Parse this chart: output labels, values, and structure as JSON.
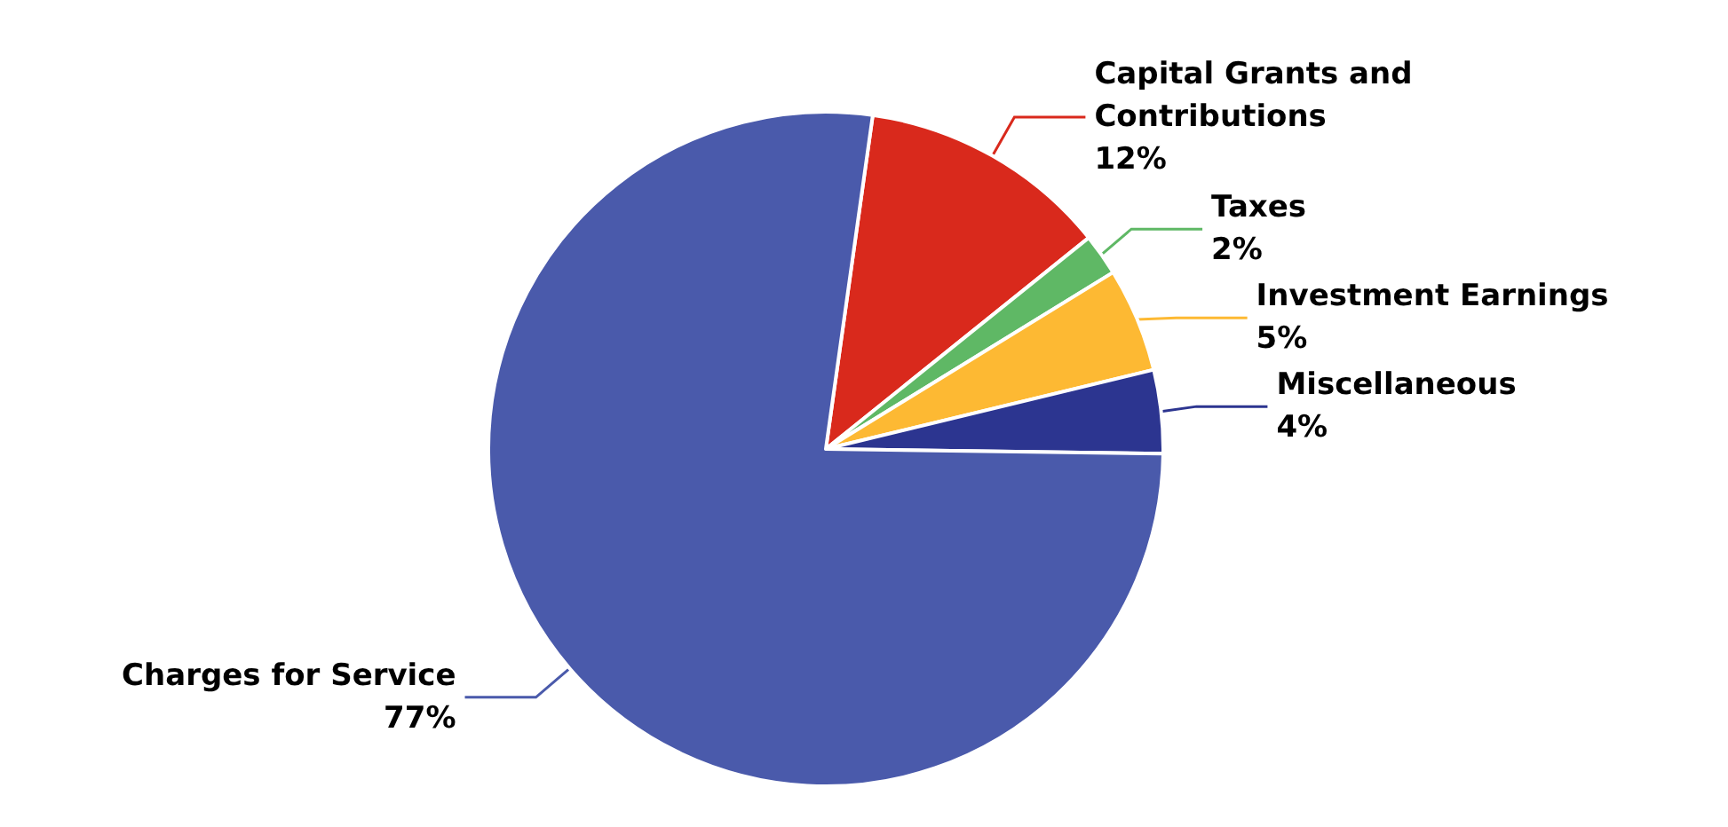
{
  "chart_data": {
    "type": "pie",
    "categories": [
      "Capital Grants and Contributions",
      "Taxes",
      "Investment Earnings",
      "Miscellaneous",
      "Charges for Service"
    ],
    "values": [
      12,
      2,
      5,
      4,
      77
    ],
    "value_labels": [
      "12%",
      "2%",
      "5%",
      "4%",
      "77%"
    ],
    "colors": [
      "#d9291c",
      "#5fb865",
      "#fdb933",
      "#2c3590",
      "#4a5aab"
    ],
    "legend": false
  }
}
